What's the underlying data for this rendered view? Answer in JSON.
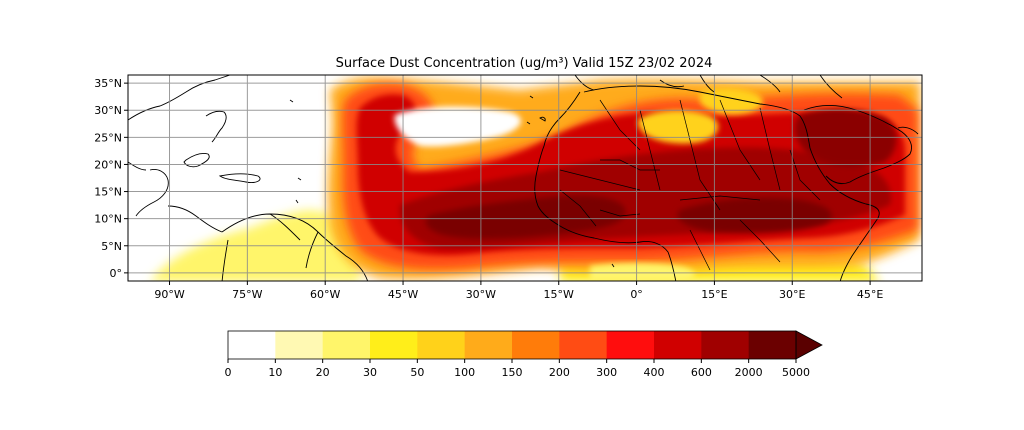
{
  "title": "Surface Dust Concentration (ug/m³) Valid 15Z 23/02 2024",
  "latitude_labels": [
    "35°N",
    "30°N",
    "25°N",
    "20°N",
    "15°N",
    "10°N",
    "5°N",
    "0°"
  ],
  "longitude_labels": [
    "90°W",
    "75°W",
    "60°W",
    "45°W",
    "30°W",
    "15°W",
    "0°",
    "15°E",
    "30°E",
    "45°E"
  ],
  "colorbar": {
    "labels": [
      "0",
      "10",
      "20",
      "30",
      "50",
      "100",
      "150",
      "200",
      "300",
      "400",
      "600",
      "2000",
      "5000"
    ],
    "colors": [
      "#ffffff",
      "#fff9b3",
      "#fff56a",
      "#ffee1a",
      "#ffd21a",
      "#ffab1a",
      "#ff7c0a",
      "#ff4c14",
      "#ff0d0d",
      "#d00000",
      "#a00000",
      "#6b0000",
      "#5a0000"
    ]
  },
  "palette": {
    "land": "#ffffff",
    "coast": "#000000",
    "grid": "#8a8a8a"
  }
}
